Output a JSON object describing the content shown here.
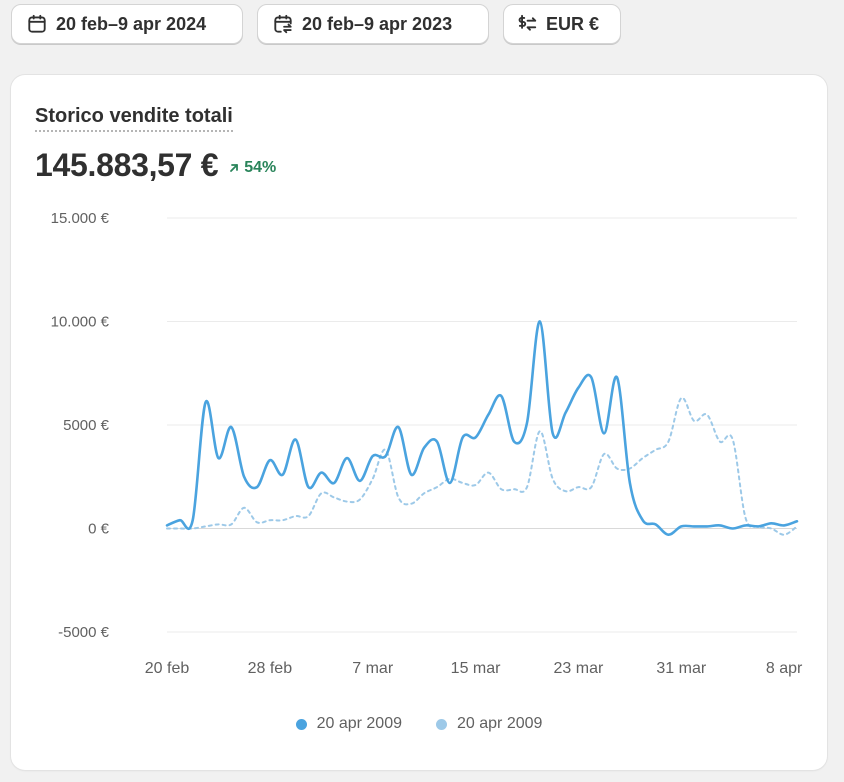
{
  "toolbar": {
    "date_range": "20 feb–9 apr 2024",
    "compare_range": "20 feb–9 apr 2023",
    "currency": "EUR €",
    "icons": {
      "date_range": "calendar-icon",
      "compare_range": "calendar-compare-icon",
      "currency": "currency-exchange-icon"
    }
  },
  "card": {
    "title": "Storico vendite totali",
    "value": "145.883,57 €",
    "change": "54%",
    "change_direction": "up",
    "change_color": "#29845a"
  },
  "colors": {
    "primary": "#4aa3df",
    "comparison": "#9dc9e8",
    "grid": "#ebebeb",
    "zero": "#d9d9d9"
  },
  "chart_data": {
    "type": "line",
    "ylim": [
      -5000,
      15000
    ],
    "y_ticks": [
      15000,
      10000,
      5000,
      0,
      -5000
    ],
    "y_tick_labels": [
      "15.000 €",
      "10.000 €",
      "5000 €",
      "0 €",
      "-5000 €"
    ],
    "x": [
      "20 feb",
      "21 feb",
      "22 feb",
      "23 feb",
      "24 feb",
      "25 feb",
      "26 feb",
      "27 feb",
      "28 feb",
      "29 feb",
      "1 mar",
      "2 mar",
      "3 mar",
      "4 mar",
      "5 mar",
      "6 mar",
      "7 mar",
      "8 mar",
      "9 mar",
      "10 mar",
      "11 mar",
      "12 mar",
      "13 mar",
      "14 mar",
      "15 mar",
      "16 mar",
      "17 mar",
      "18 mar",
      "19 mar",
      "20 mar",
      "21 mar",
      "22 mar",
      "23 mar",
      "24 mar",
      "25 mar",
      "26 mar",
      "27 mar",
      "28 mar",
      "29 mar",
      "30 mar",
      "31 mar",
      "1 apr",
      "2 apr",
      "3 apr",
      "4 apr",
      "5 apr",
      "6 apr",
      "7 apr",
      "8 apr",
      "9 apr"
    ],
    "x_tick_labels": [
      "20 feb",
      "28 feb",
      "7 mar",
      "15 mar",
      "23 mar",
      "31 mar",
      "8 apr"
    ],
    "x_tick_index": [
      0,
      8,
      16,
      24,
      32,
      40,
      48
    ],
    "grid": true,
    "legend": "bottom-center",
    "series": [
      {
        "name": "20 apr 2009",
        "color": "#4aa3df",
        "style": "solid",
        "values": [
          150,
          400,
          400,
          6100,
          3400,
          4900,
          2500,
          2000,
          3300,
          2600,
          4300,
          2000,
          2700,
          2200,
          3400,
          2300,
          3500,
          3500,
          4900,
          2600,
          3900,
          4200,
          2200,
          4400,
          4400,
          5500,
          6400,
          4200,
          5100,
          10000,
          4600,
          5600,
          6800,
          7300,
          4600,
          7300,
          2200,
          400,
          200,
          -300,
          100,
          100,
          100,
          150,
          0,
          150,
          100,
          250,
          150,
          350
        ]
      },
      {
        "name": "20 apr 2009",
        "color": "#9dc9e8",
        "style": "dashed",
        "values": [
          0,
          0,
          0,
          100,
          200,
          200,
          1000,
          300,
          400,
          400,
          600,
          600,
          1700,
          1500,
          1300,
          1400,
          2400,
          3800,
          1500,
          1200,
          1700,
          2000,
          2400,
          2200,
          2100,
          2700,
          1900,
          1900,
          2000,
          4700,
          2400,
          1800,
          2000,
          2000,
          3600,
          2900,
          2900,
          3400,
          3800,
          4200,
          6300,
          5200,
          5500,
          4200,
          4300,
          500,
          100,
          0,
          -300,
          100
        ]
      }
    ]
  }
}
